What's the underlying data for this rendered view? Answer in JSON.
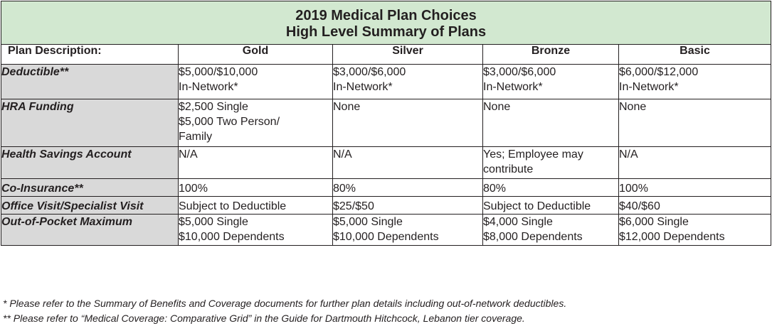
{
  "title": {
    "line1": "2019 Medical Plan Choices",
    "line2": "High Level Summary of Plans"
  },
  "header": {
    "row_label": "Plan Description:",
    "plans": [
      "Gold",
      "Silver",
      "Bronze",
      "Basic"
    ]
  },
  "rows": [
    {
      "label": "Deductible**",
      "cells": [
        "$5,000/$10,000\nIn-Network*",
        "$3,000/$6,000\nIn-Network*",
        "$3,000/$6,000\nIn-Network*",
        "$6,000/$12,000\nIn-Network*"
      ]
    },
    {
      "label": "HRA Funding",
      "cells": [
        "$2,500 Single\n$5,000 Two Person/\nFamily",
        "None",
        "None",
        "None"
      ]
    },
    {
      "label": "Health Savings Account",
      "cells": [
        "N/A",
        "N/A",
        "Yes; Employee may\ncontribute",
        "N/A"
      ]
    },
    {
      "label": "Co-Insurance**",
      "cells": [
        "100%",
        "80%",
        "80%",
        "100%"
      ]
    },
    {
      "label": "Office Visit/Specialist Visit",
      "cells": [
        "Subject to Deductible",
        "$25/$50",
        "Subject to Deductible",
        "$40/$60"
      ]
    },
    {
      "label": "Out-of-Pocket Maximum",
      "cells": [
        "$5,000 Single\n$10,000 Dependents",
        "$5,000 Single\n$10,000 Dependents",
        "$4,000 Single\n$8,000 Dependents",
        "$6,000 Single\n$12,000 Dependents"
      ]
    }
  ],
  "footnotes": [
    "* Please refer to the Summary of Benefits and Coverage documents for further plan details including out-of-network deductibles.",
    "** Please refer to “Medical Coverage: Comparative Grid” in the Guide for Dartmouth Hitchcock, Lebanon tier coverage."
  ],
  "colors": {
    "title_bg": "#d2e8d0",
    "label_bg": "#d9d9d9",
    "border": "#231f20"
  }
}
